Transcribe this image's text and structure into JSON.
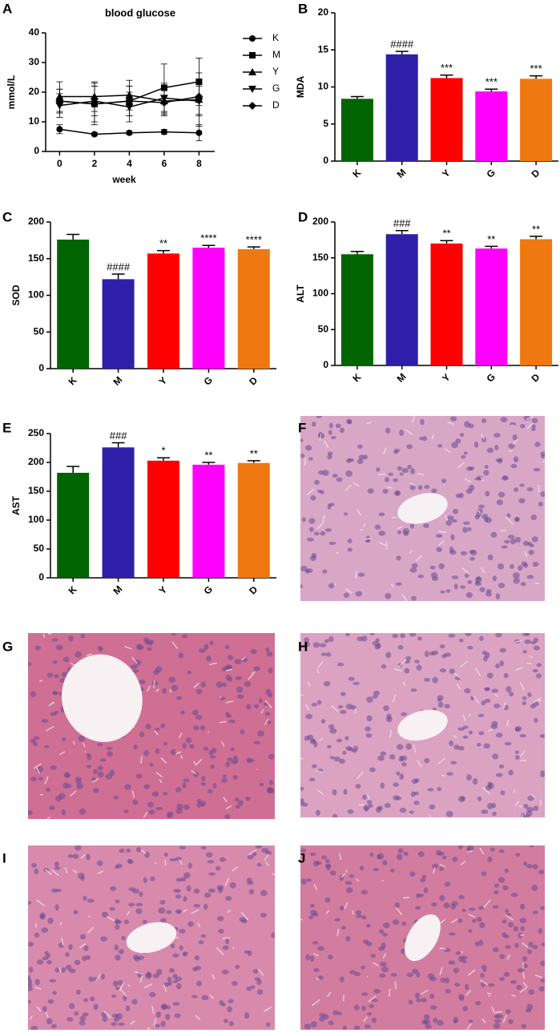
{
  "chart_data": [
    {
      "type": "line",
      "panel": "A",
      "title": "blood glucose",
      "xlabel": "week",
      "ylabel": "mmol/L",
      "x": [
        0,
        2,
        4,
        6,
        8
      ],
      "xlim": [
        -0.8,
        8.9
      ],
      "xticks": [
        0,
        2,
        4,
        6,
        8
      ],
      "ylim": [
        0,
        40
      ],
      "yticks": [
        0,
        10,
        20,
        30,
        40
      ],
      "series": [
        {
          "name": "K",
          "marker": "circle",
          "color": "#000000",
          "values": [
            7.5,
            5.8,
            6.3,
            6.6,
            6.3
          ],
          "errors": [
            1.5,
            0.5,
            0.6,
            0.8,
            2.7
          ]
        },
        {
          "name": "M",
          "marker": "square",
          "color": "#000000",
          "values": [
            17,
            16,
            17,
            21.5,
            23.5
          ],
          "errors": [
            4,
            7,
            5,
            8,
            8
          ]
        },
        {
          "name": "Y",
          "marker": "triangle",
          "color": "#000000",
          "values": [
            18.5,
            18.5,
            19,
            17,
            17.5
          ],
          "errors": [
            5,
            5,
            5,
            5,
            9
          ]
        },
        {
          "name": "G",
          "marker": "triangle-down",
          "color": "#000000",
          "values": [
            15.5,
            17,
            15,
            18,
            17
          ],
          "errors": [
            4,
            5,
            5,
            5,
            5
          ]
        },
        {
          "name": "D",
          "marker": "diamond",
          "color": "#000000",
          "values": [
            17,
            16,
            17,
            16.5,
            18.5
          ],
          "errors": [
            4,
            6,
            5,
            4,
            6
          ]
        }
      ]
    },
    {
      "type": "bar",
      "panel": "B",
      "ylabel": "MDA",
      "categories": [
        "K",
        "M",
        "Y",
        "G",
        "D"
      ],
      "values": [
        8.4,
        14.4,
        11.2,
        9.4,
        11.1
      ],
      "errors": [
        0.3,
        0.4,
        0.4,
        0.3,
        0.4
      ],
      "annotations": [
        null,
        "####",
        "***",
        "***",
        "***"
      ],
      "colors": [
        "#006400",
        "#2f1fa8",
        "#ff0000",
        "#ff00ff",
        "#f07810"
      ],
      "ylim": [
        0,
        20
      ],
      "yticks": [
        0,
        5,
        10,
        15,
        20
      ]
    },
    {
      "type": "bar",
      "panel": "C",
      "ylabel": "SOD",
      "categories": [
        "K",
        "M",
        "Y",
        "G",
        "D"
      ],
      "values": [
        176,
        122,
        157,
        165,
        163
      ],
      "errors": [
        7,
        7,
        4,
        3,
        3
      ],
      "annotations": [
        null,
        "####",
        "**",
        "****",
        "****"
      ],
      "colors": [
        "#006400",
        "#2f1fa8",
        "#ff0000",
        "#ff00ff",
        "#f07810"
      ],
      "ylim": [
        0,
        200
      ],
      "yticks": [
        0,
        50,
        100,
        150,
        200
      ]
    },
    {
      "type": "bar",
      "panel": "D",
      "ylabel": "ALT",
      "categories": [
        "K",
        "M",
        "Y",
        "G",
        "D"
      ],
      "values": [
        155,
        183,
        170,
        163,
        176
      ],
      "errors": [
        4,
        5,
        4,
        3,
        4
      ],
      "annotations": [
        null,
        "###",
        "**",
        "**",
        "**"
      ],
      "colors": [
        "#006400",
        "#2f1fa8",
        "#ff0000",
        "#ff00ff",
        "#f07810"
      ],
      "ylim": [
        0,
        200
      ],
      "yticks": [
        0,
        50,
        100,
        150,
        200
      ]
    },
    {
      "type": "bar",
      "panel": "E",
      "ylabel": "AST",
      "categories": [
        "K",
        "M",
        "Y",
        "G",
        "D"
      ],
      "values": [
        182,
        226,
        203,
        196,
        199
      ],
      "errors": [
        11,
        8,
        5,
        4,
        4
      ],
      "annotations": [
        null,
        "###",
        "*",
        "**",
        "**"
      ],
      "colors": [
        "#006400",
        "#2f1fa8",
        "#ff0000",
        "#ff00ff",
        "#f07810"
      ],
      "ylim": [
        0,
        250
      ],
      "yticks": [
        0,
        50,
        100,
        150,
        200,
        250
      ]
    }
  ],
  "images": [
    {
      "label": "F"
    },
    {
      "label": "G"
    },
    {
      "label": "H"
    },
    {
      "label": "I"
    },
    {
      "label": "J"
    }
  ]
}
